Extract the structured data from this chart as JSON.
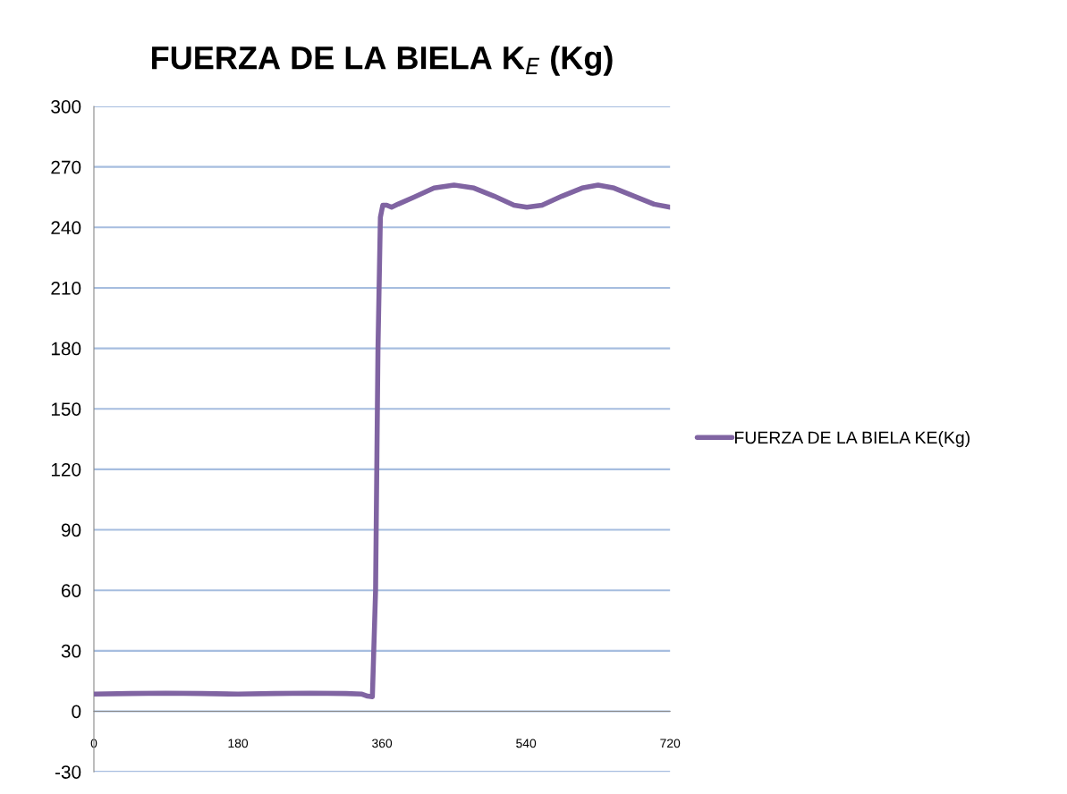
{
  "chart_data": {
    "type": "line",
    "title": "FUERZA DE LA BIELA K$_{E}$ (Kg)",
    "xlim": [
      0,
      720
    ],
    "xticks": [
      0,
      180,
      360,
      540,
      720
    ],
    "ylim": [
      -30,
      300
    ],
    "yticks": [
      -30,
      0,
      30,
      60,
      90,
      120,
      150,
      180,
      210,
      240,
      270,
      300
    ],
    "grid": "y",
    "legend": "right",
    "marker": "none",
    "line_style": "solid",
    "series": [
      {
        "name": "FUERZA DE LA BIELA KE(Kg)",
        "color": "#8064a2",
        "x": [
          0,
          45,
          90,
          135,
          180,
          225,
          270,
          315,
          335,
          342,
          348,
          352,
          355,
          358,
          361,
          366,
          372,
          380,
          400,
          425,
          450,
          475,
          500,
          525,
          541,
          560,
          585,
          610,
          630,
          650,
          675,
          700,
          720
        ],
        "values": [
          8.5,
          8.8,
          9,
          8.8,
          8.5,
          8.8,
          9,
          8.8,
          8.5,
          7.5,
          7.2,
          60,
          180,
          245,
          251,
          251,
          250,
          251.5,
          255,
          259.5,
          261,
          259.5,
          255.5,
          251,
          250,
          251,
          255.5,
          259.5,
          261,
          259.5,
          255.5,
          251.5,
          250
        ]
      }
    ]
  }
}
